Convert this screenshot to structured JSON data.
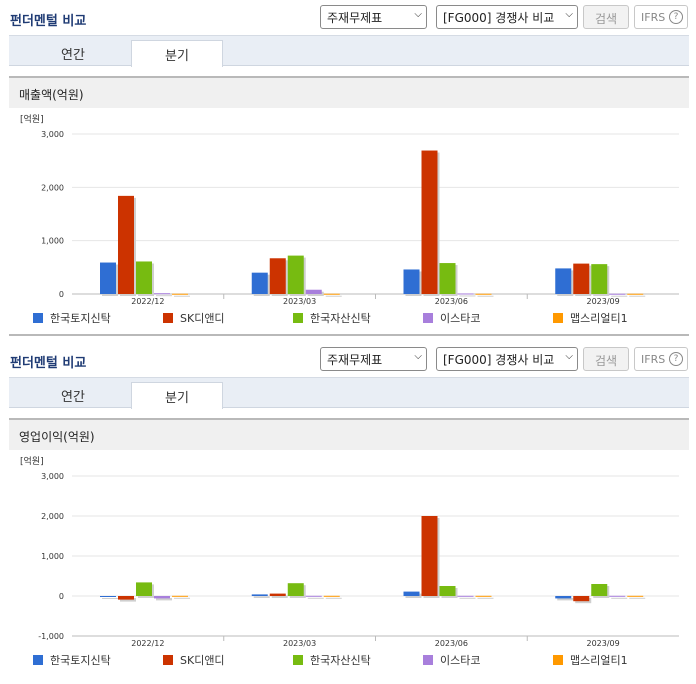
{
  "panels": [
    {
      "title": "펀더멘털 비교",
      "select1": "주재무제표",
      "select2": "[FG000] 경쟁사 비교",
      "search": "검색",
      "ifrs": "IFRS",
      "help": "?",
      "tabs": [
        "연간",
        "분기"
      ],
      "active_tab": 1,
      "chart_title": "매출액(억원)",
      "unit": "[억원]"
    },
    {
      "title": "펀더멘털 비교",
      "select1": "주재무제표",
      "select2": "[FG000] 경쟁사 비교",
      "search": "검색",
      "ifrs": "IFRS",
      "help": "?",
      "tabs": [
        "연간",
        "분기"
      ],
      "active_tab": 1,
      "chart_title": "영업이익(억원)",
      "unit": "[억원]"
    }
  ],
  "colors": {
    "한국토지신탁": "#2f6ed3",
    "SK디앤디": "#cc3300",
    "한국자산신탁": "#77bb11",
    "이스타코": "#a87fdc",
    "맵스리얼티1": "#ff9900"
  },
  "chart_data": [
    {
      "type": "bar",
      "title": "매출액(억원)",
      "ylabel": "[억원]",
      "categories": [
        "2022/12",
        "2023/03",
        "2023/06",
        "2023/09"
      ],
      "ylim": [
        0,
        3000
      ],
      "yticks": [
        "0",
        "1,000",
        "2,000",
        "3,000"
      ],
      "ytick_values": [
        0,
        1000,
        2000,
        3000
      ],
      "legend_position": "bottom",
      "series": [
        {
          "name": "한국토지신탁",
          "values": [
            590,
            400,
            460,
            480
          ]
        },
        {
          "name": "SK디앤디",
          "values": [
            1840,
            670,
            2690,
            570
          ]
        },
        {
          "name": "한국자산신탁",
          "values": [
            610,
            720,
            580,
            560
          ]
        },
        {
          "name": "이스타코",
          "values": [
            15,
            80,
            10,
            5
          ]
        },
        {
          "name": "맵스리얼티1",
          "values": [
            5,
            5,
            5,
            5
          ]
        }
      ]
    },
    {
      "type": "bar",
      "title": "영업이익(억원)",
      "ylabel": "[억원]",
      "categories": [
        "2022/12",
        "2023/03",
        "2023/06",
        "2023/09"
      ],
      "ylim": [
        -1000,
        3000
      ],
      "yticks": [
        "-1,000",
        "0",
        "1,000",
        "2,000",
        "3,000"
      ],
      "ytick_values": [
        -1000,
        0,
        1000,
        2000,
        3000
      ],
      "legend_position": "bottom",
      "series": [
        {
          "name": "한국토지신탁",
          "values": [
            -20,
            40,
            110,
            -60
          ]
        },
        {
          "name": "SK디앤디",
          "values": [
            -90,
            60,
            2000,
            -130
          ]
        },
        {
          "name": "한국자산신탁",
          "values": [
            340,
            320,
            250,
            300
          ]
        },
        {
          "name": "이스타코",
          "values": [
            -60,
            5,
            5,
            5
          ]
        },
        {
          "name": "맵스리얼티1",
          "values": [
            5,
            5,
            5,
            5
          ]
        }
      ]
    }
  ]
}
